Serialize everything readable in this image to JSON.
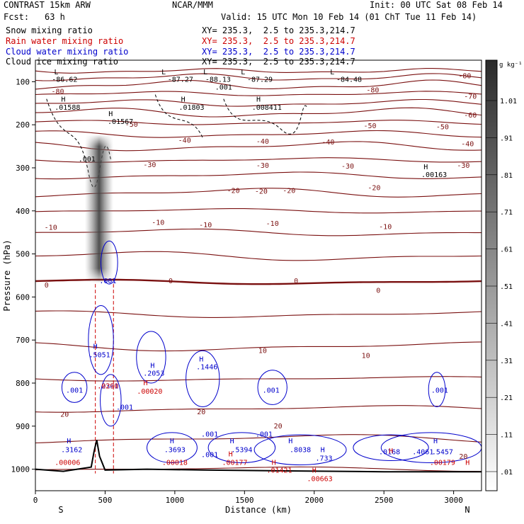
{
  "header": {
    "model": "CONTRAST 15km ARW",
    "org": "NCAR/MMM",
    "init": "Init: 00 UTC Sat 08 Feb 14",
    "fcst_label": "Fcst:",
    "fcst_value": "63 h",
    "valid": "Valid: 15 UTC Mon 10 Feb 14 (01 ChT Tue 11 Feb 14)"
  },
  "fields": [
    {
      "name": "Snow mixing ratio",
      "xy": "XY= 235.3,  2.5 to 235.3,214.7",
      "color": "#000000"
    },
    {
      "name": "Rain water mixing ratio",
      "xy": "XY= 235.3,  2.5 to 235.3,214.7",
      "color": "#cc0000"
    },
    {
      "name": "Cloud water mixing ratio",
      "xy": "XY= 235.3,  2.5 to 235.3,214.7",
      "color": "#0000cc"
    },
    {
      "name": "Cloud ice mixing ratio",
      "xy": "XY= 235.3,  2.5 to 235.3,214.7",
      "color": "#000000"
    }
  ],
  "chart_data": {
    "type": "contour",
    "ylabel": "Pressure (hPa)",
    "xlabel": "Distance (km)",
    "x_ticks": [
      0,
      500,
      1000,
      1500,
      2000,
      2500,
      3000
    ],
    "y_ticks": [
      100,
      200,
      300,
      400,
      500,
      600,
      700,
      800,
      900,
      1000
    ],
    "xlim": [
      0,
      3200
    ],
    "ylim": [
      1050,
      50
    ],
    "x_end_labels": {
      "left": "S",
      "right": "N"
    },
    "colorbar": {
      "unit": "g kg⁻¹",
      "labels": [
        "1.01",
        ".91",
        ".81",
        ".71",
        ".61",
        ".51",
        ".41",
        ".31",
        ".21",
        ".11",
        ".01"
      ]
    },
    "temperature_contours": [
      {
        "level": -80,
        "labels": [
          {
            "x": 160,
            "p": 128,
            "t": "-80"
          },
          {
            "x": 2420,
            "p": 125,
            "t": "-80"
          },
          {
            "x": 3080,
            "p": 92,
            "t": "-80"
          }
        ]
      },
      {
        "level": -70,
        "labels": [
          {
            "x": 3120,
            "p": 140,
            "t": "-70"
          }
        ]
      },
      {
        "level": -60,
        "labels": [
          {
            "x": 3120,
            "p": 183,
            "t": "-60"
          }
        ]
      },
      {
        "level": -50,
        "labels": [
          {
            "x": 690,
            "p": 205,
            "t": "-50"
          },
          {
            "x": 2400,
            "p": 208,
            "t": "-50"
          },
          {
            "x": 2920,
            "p": 210,
            "t": "-50"
          }
        ]
      },
      {
        "level": -40,
        "labels": [
          {
            "x": 1070,
            "p": 242,
            "t": "-40"
          },
          {
            "x": 1630,
            "p": 244,
            "t": "-40"
          },
          {
            "x": 2100,
            "p": 246,
            "t": "-40"
          },
          {
            "x": 3100,
            "p": 250,
            "t": "-40"
          }
        ]
      },
      {
        "level": -30,
        "labels": [
          {
            "x": 820,
            "p": 298,
            "t": "-30"
          },
          {
            "x": 1630,
            "p": 300,
            "t": "-30"
          },
          {
            "x": 2240,
            "p": 302,
            "t": "-30"
          },
          {
            "x": 3070,
            "p": 300,
            "t": "-30"
          }
        ]
      },
      {
        "level": -20,
        "labels": [
          {
            "x": 1420,
            "p": 358,
            "t": "-20"
          },
          {
            "x": 1620,
            "p": 360,
            "t": "-20"
          },
          {
            "x": 1820,
            "p": 358,
            "t": "-20"
          },
          {
            "x": 2430,
            "p": 352,
            "t": "-20"
          }
        ]
      },
      {
        "level": -10,
        "labels": [
          {
            "x": 110,
            "p": 444,
            "t": "-10"
          },
          {
            "x": 880,
            "p": 432,
            "t": "-10"
          },
          {
            "x": 1220,
            "p": 438,
            "t": "-10"
          },
          {
            "x": 1700,
            "p": 435,
            "t": "-10"
          },
          {
            "x": 2510,
            "p": 442,
            "t": "-10"
          }
        ]
      },
      {
        "level": 0,
        "labels": [
          {
            "x": 80,
            "p": 578,
            "t": "0"
          },
          {
            "x": 970,
            "p": 568,
            "t": "0"
          },
          {
            "x": 1870,
            "p": 568,
            "t": "0"
          },
          {
            "x": 2460,
            "p": 590,
            "t": "0"
          }
        ]
      },
      {
        "level": 10,
        "labels": [
          {
            "x": 1630,
            "p": 730,
            "t": "10"
          },
          {
            "x": 2370,
            "p": 742,
            "t": "10"
          }
        ]
      },
      {
        "level": 20,
        "labels": [
          {
            "x": 210,
            "p": 878,
            "t": "20"
          },
          {
            "x": 1190,
            "p": 872,
            "t": "20"
          },
          {
            "x": 1740,
            "p": 905,
            "t": "20"
          },
          {
            "x": 3070,
            "p": 976,
            "t": "20"
          }
        ]
      }
    ],
    "snow_labels": [
      {
        "x": 150,
        "p": 83,
        "t": "L"
      },
      {
        "x": 210,
        "p": 100,
        "t": "-86.62"
      },
      {
        "x": 920,
        "p": 83,
        "t": "L"
      },
      {
        "x": 1040,
        "p": 100,
        "t": "-87.27"
      },
      {
        "x": 1220,
        "p": 83,
        "t": "L"
      },
      {
        "x": 1310,
        "p": 100,
        "t": "-88.13"
      },
      {
        "x": 1350,
        "p": 118,
        "t": ".001"
      },
      {
        "x": 1490,
        "p": 83,
        "t": "L"
      },
      {
        "x": 1610,
        "p": 100,
        "t": "-87.29"
      },
      {
        "x": 2130,
        "p": 83,
        "t": "L"
      },
      {
        "x": 2250,
        "p": 100,
        "t": "-84.48"
      },
      {
        "x": 200,
        "p": 146,
        "t": "H"
      },
      {
        "x": 230,
        "p": 165,
        "t": ".01588"
      },
      {
        "x": 1060,
        "p": 146,
        "t": "H"
      },
      {
        "x": 1120,
        "p": 165,
        "t": ".01803"
      },
      {
        "x": 1600,
        "p": 146,
        "t": "H"
      },
      {
        "x": 1660,
        "p": 165,
        "t": ".008411"
      },
      {
        "x": 540,
        "p": 180,
        "t": "H"
      },
      {
        "x": 610,
        "p": 198,
        "t": ".01567"
      },
      {
        "x": 2800,
        "p": 303,
        "t": "H"
      },
      {
        "x": 2860,
        "p": 321,
        "t": ".00163"
      },
      {
        "x": 370,
        "p": 285,
        "t": ".001"
      }
    ],
    "cloud_labels": [
      {
        "x": 520,
        "p": 568,
        "t": ".001"
      },
      {
        "x": 430,
        "p": 720,
        "t": "H"
      },
      {
        "x": 460,
        "p": 740,
        "t": ".5051"
      },
      {
        "x": 840,
        "p": 765,
        "t": "H"
      },
      {
        "x": 850,
        "p": 783,
        "t": ".2053"
      },
      {
        "x": 1190,
        "p": 750,
        "t": "H"
      },
      {
        "x": 1230,
        "p": 768,
        "t": ".1446"
      },
      {
        "x": 280,
        "p": 822,
        "t": ".001"
      },
      {
        "x": 1690,
        "p": 822,
        "t": ".001"
      },
      {
        "x": 520,
        "p": 812,
        "t": ".2301"
      },
      {
        "x": 640,
        "p": 862,
        "t": ".001"
      },
      {
        "x": 2900,
        "p": 822,
        "t": ".001"
      },
      {
        "x": 240,
        "p": 940,
        "t": "H"
      },
      {
        "x": 260,
        "p": 960,
        "t": ".3162"
      },
      {
        "x": 980,
        "p": 940,
        "t": "H"
      },
      {
        "x": 1000,
        "p": 960,
        "t": ".3693"
      },
      {
        "x": 1250,
        "p": 924,
        "t": ".001"
      },
      {
        "x": 1250,
        "p": 972,
        "t": ".001"
      },
      {
        "x": 1410,
        "p": 940,
        "t": "H"
      },
      {
        "x": 1480,
        "p": 960,
        "t": ".5394"
      },
      {
        "x": 1640,
        "p": 924,
        "t": ".001"
      },
      {
        "x": 1830,
        "p": 940,
        "t": "H"
      },
      {
        "x": 1900,
        "p": 960,
        "t": ".8038"
      },
      {
        "x": 2060,
        "p": 960,
        "t": "H"
      },
      {
        "x": 2070,
        "p": 980,
        "t": ".733"
      },
      {
        "x": 2540,
        "p": 965,
        "t": ".0168"
      },
      {
        "x": 2780,
        "p": 965,
        "t": ".4061"
      },
      {
        "x": 2870,
        "p": 940,
        "t": "H"
      },
      {
        "x": 2920,
        "p": 965,
        "t": ".5457"
      }
    ],
    "rain_labels": [
      {
        "x": 520,
        "p": 812,
        "t": ".0290"
      },
      {
        "x": 790,
        "p": 805,
        "t": "H"
      },
      {
        "x": 820,
        "p": 825,
        "t": ".00020"
      },
      {
        "x": 230,
        "p": 990,
        "t": ".00006"
      },
      {
        "x": 1000,
        "p": 990,
        "t": ".00018"
      },
      {
        "x": 1400,
        "p": 970,
        "t": "H"
      },
      {
        "x": 1430,
        "p": 990,
        "t": ".00177"
      },
      {
        "x": 1710,
        "p": 990,
        "t": "H"
      },
      {
        "x": 1750,
        "p": 1008,
        "t": ".01421"
      },
      {
        "x": 2000,
        "p": 1008,
        "t": "H"
      },
      {
        "x": 2040,
        "p": 1028,
        "t": ".00663"
      },
      {
        "x": 2550,
        "p": 963,
        "t": "H"
      },
      {
        "x": 2920,
        "p": 990,
        "t": ".00179"
      },
      {
        "x": 3100,
        "p": 990,
        "t": "H"
      }
    ]
  }
}
